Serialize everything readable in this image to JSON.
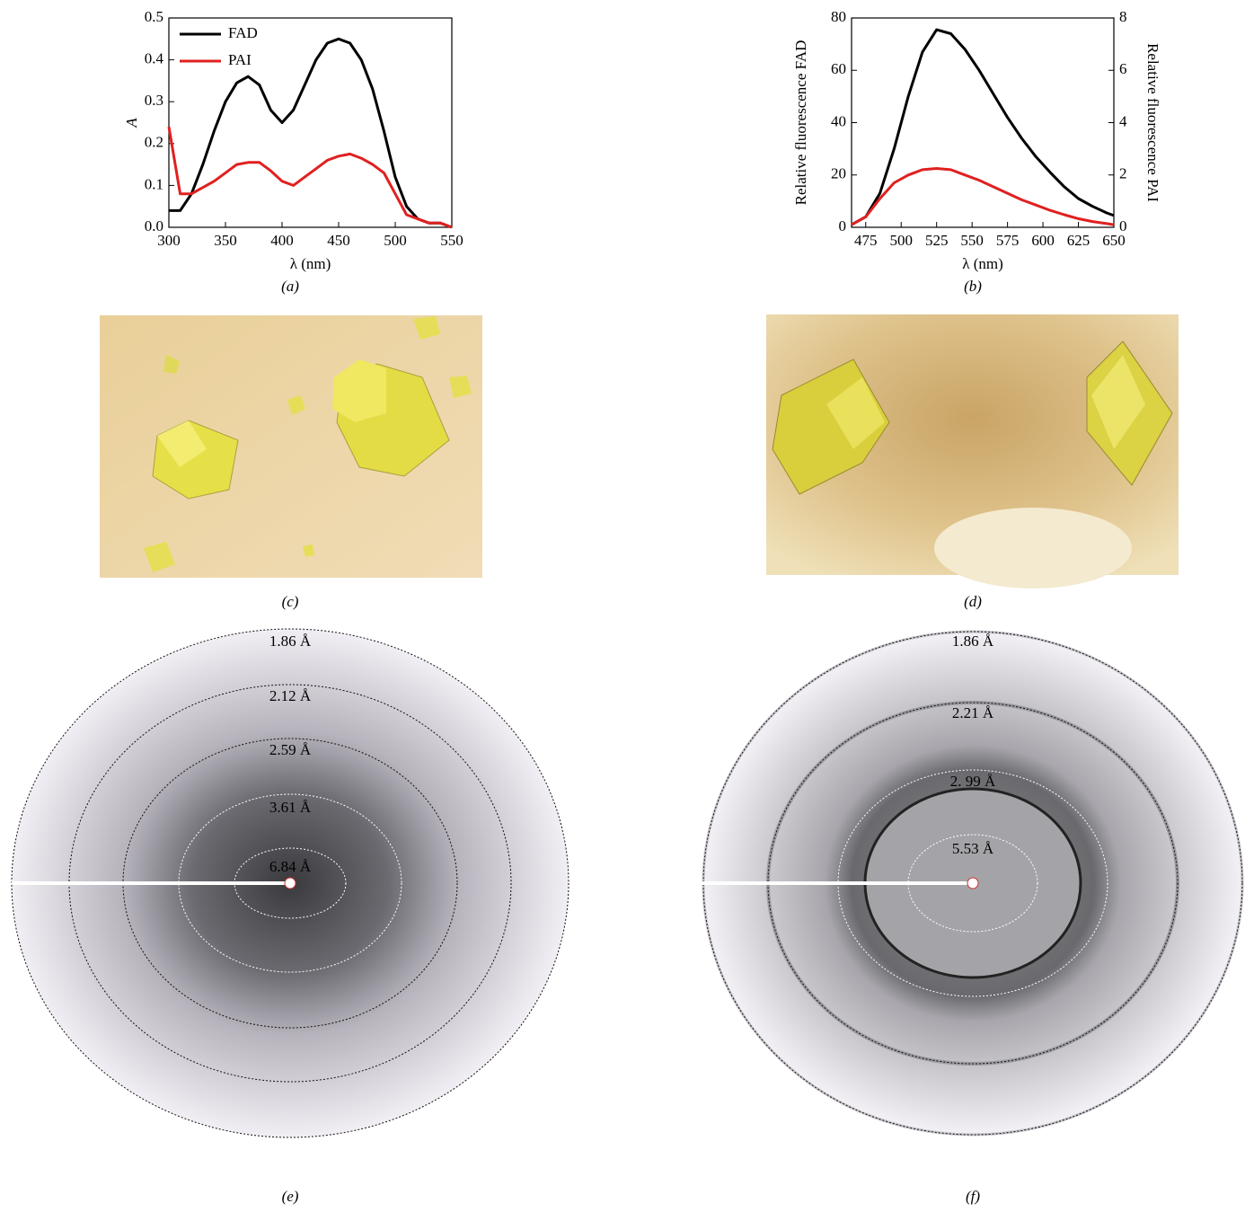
{
  "chart_data": [
    {
      "type": "line",
      "caption": "(a)",
      "x_label": "λ (nm)",
      "y_label": "A",
      "x": [
        300,
        310,
        320,
        330,
        340,
        350,
        360,
        370,
        380,
        390,
        400,
        410,
        420,
        430,
        440,
        450,
        460,
        470,
        480,
        490,
        500,
        510,
        520,
        530,
        540,
        550
      ],
      "series": [
        {
          "name": "FAD",
          "color": "#000000",
          "values": [
            0.04,
            0.04,
            0.08,
            0.15,
            0.23,
            0.3,
            0.345,
            0.36,
            0.34,
            0.28,
            0.25,
            0.28,
            0.34,
            0.4,
            0.44,
            0.45,
            0.44,
            0.4,
            0.33,
            0.23,
            0.12,
            0.05,
            0.02,
            0.01,
            0.01,
            0.0
          ]
        },
        {
          "name": "PAI",
          "color": "#e02020",
          "values": [
            0.24,
            0.08,
            0.08,
            0.095,
            0.11,
            0.13,
            0.15,
            0.155,
            0.155,
            0.135,
            0.11,
            0.1,
            0.12,
            0.14,
            0.16,
            0.17,
            0.175,
            0.165,
            0.15,
            0.13,
            0.08,
            0.03,
            0.02,
            0.01,
            0.01,
            0.0
          ]
        }
      ],
      "xlim": [
        300,
        550
      ],
      "xticks": [
        300,
        350,
        400,
        450,
        500,
        550
      ],
      "ylim": [
        0,
        0.5
      ],
      "yticks": [
        {
          "value": 0,
          "label": "0.0"
        },
        0.1,
        0.2,
        0.3,
        0.4,
        0.5
      ],
      "legend": "upper left"
    },
    {
      "type": "line",
      "caption": "(b)",
      "x_label": "λ (nm)",
      "y_label": "Relative fluorescence FAD",
      "y2_label": "Relative fluorescence PAI",
      "x": [
        465,
        475,
        485,
        495,
        505,
        515,
        525,
        535,
        545,
        555,
        565,
        575,
        585,
        595,
        605,
        615,
        625,
        635,
        645,
        650
      ],
      "series": [
        {
          "color": "#000000",
          "values": [
            1,
            4,
            13,
            30,
            50,
            67,
            75.5,
            74,
            68,
            60,
            51,
            42,
            34,
            27,
            21,
            15.5,
            11,
            8,
            5.5,
            4.5
          ]
        },
        {
          "color": "#e02020",
          "axis": "y2",
          "values": [
            0.1,
            0.4,
            1.1,
            1.7,
            2.0,
            2.2,
            2.25,
            2.2,
            2.0,
            1.8,
            1.55,
            1.3,
            1.05,
            0.85,
            0.65,
            0.48,
            0.33,
            0.22,
            0.14,
            0.1
          ]
        }
      ],
      "xlim": [
        465,
        650
      ],
      "xticks": [
        475,
        500,
        525,
        550,
        575,
        600,
        625,
        650
      ],
      "ylim": [
        0,
        80
      ],
      "yticks": [
        0,
        20,
        40,
        60,
        80
      ],
      "y2lim": [
        0,
        8
      ],
      "y2ticks": [
        0,
        2,
        4,
        6,
        8
      ]
    }
  ],
  "figures": [
    {
      "caption": "(c)"
    },
    {
      "caption": "(d)"
    },
    {
      "caption": "(e)",
      "rings": [
        "1.86 Å",
        "2.12 Å",
        "2.59 Å",
        "3.61 Å",
        "6.84 Å"
      ]
    },
    {
      "caption": "(f)",
      "rings": [
        "1.86 Å",
        "2.21 Å",
        "2. 99 Å",
        "5.53 Å"
      ]
    }
  ]
}
